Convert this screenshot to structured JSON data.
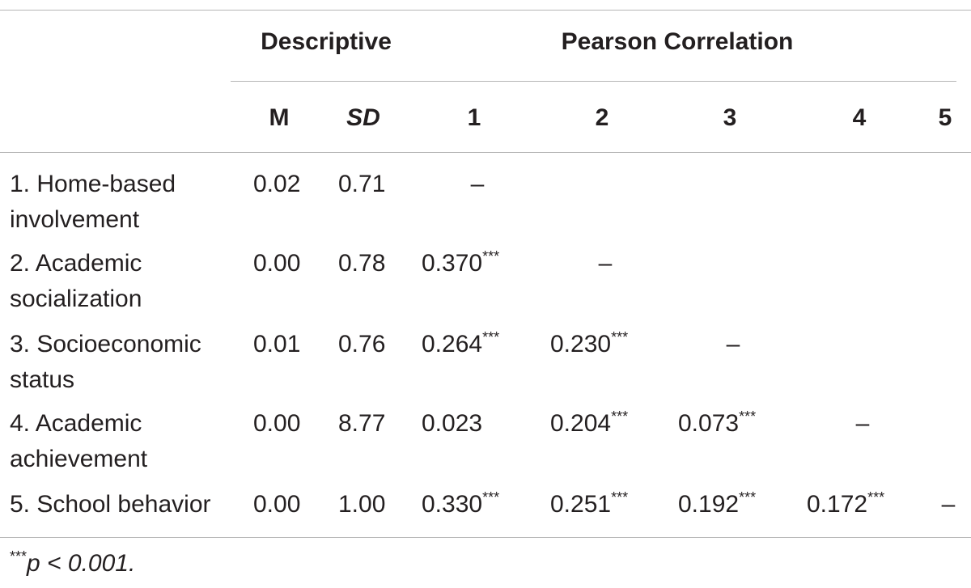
{
  "table": {
    "group_headers": [
      "Descriptive",
      "Pearson Correlation"
    ],
    "column_headers": [
      "M",
      "SD",
      "1",
      "2",
      "3",
      "4",
      "5"
    ],
    "rows": [
      {
        "label": [
          "1. Home-based",
          "involvement"
        ],
        "cells": [
          "0.02",
          "0.71",
          "–"
        ]
      },
      {
        "label": [
          "2. Academic",
          "socialization"
        ],
        "cells": [
          "0.00",
          "0.78",
          {
            "value": "0.370",
            "sig": "***"
          },
          "–"
        ]
      },
      {
        "label": [
          "3. Socioeconomic",
          "status"
        ],
        "cells": [
          "0.01",
          "0.76",
          {
            "value": "0.264",
            "sig": "***"
          },
          {
            "value": "0.230",
            "sig": "***"
          },
          "–"
        ]
      },
      {
        "label": [
          "4. Academic",
          "achievement"
        ],
        "cells": [
          "0.00",
          "8.77",
          "0.023",
          {
            "value": "0.204",
            "sig": "***"
          },
          {
            "value": "0.073",
            "sig": "***"
          },
          "–"
        ]
      },
      {
        "label": [
          "5. School behavior"
        ],
        "cells": [
          "0.00",
          "1.00",
          {
            "value": "0.330",
            "sig": "***"
          },
          {
            "value": "0.251",
            "sig": "***"
          },
          {
            "value": "0.192",
            "sig": "***"
          },
          {
            "value": "0.172",
            "sig": "***"
          },
          "–"
        ]
      }
    ],
    "footnote": {
      "sig": "***",
      "text": "p < 0.001."
    }
  }
}
